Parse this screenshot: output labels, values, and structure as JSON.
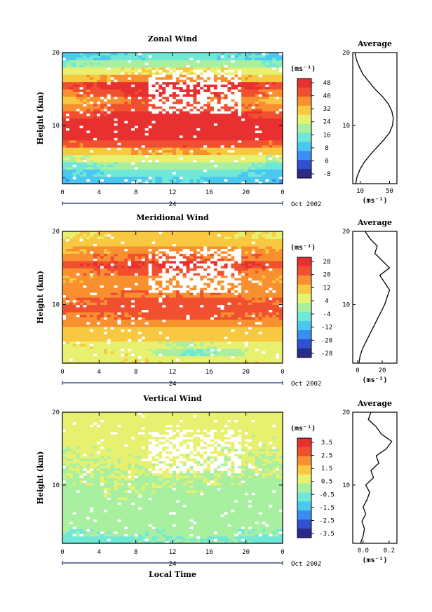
{
  "chart_data": [
    {
      "type": "heatmap",
      "title": "Zonal Wind",
      "ylabel": "Height (km)",
      "ylim": [
        2,
        20
      ],
      "y_ticks": [
        "10",
        "20"
      ],
      "xlim": [
        0,
        24
      ],
      "x_ticks": [
        "0",
        "4",
        "8",
        "12",
        "16",
        "20",
        "0"
      ],
      "date_marker": "24",
      "date_label": "Oct 2002",
      "colorbar": {
        "unit": "(ms⁻¹)",
        "levels": [
          "48",
          "40",
          "32",
          "24",
          "16",
          "8",
          "0",
          "-8"
        ],
        "range": [
          -12,
          52
        ]
      },
      "profile": {
        "title": "Average",
        "xlabel": "(ms⁻¹)",
        "x_ticks": [
          "10",
          "50"
        ],
        "xlim": [
          0,
          60
        ],
        "y_ticks": [
          "10",
          "20"
        ],
        "points": [
          [
            4,
            2
          ],
          [
            6,
            3
          ],
          [
            10,
            4
          ],
          [
            16,
            5
          ],
          [
            24,
            6
          ],
          [
            33,
            7
          ],
          [
            42,
            8
          ],
          [
            50,
            9
          ],
          [
            54,
            10
          ],
          [
            55,
            11
          ],
          [
            53,
            12
          ],
          [
            48,
            13
          ],
          [
            40,
            14
          ],
          [
            30,
            15
          ],
          [
            22,
            16
          ],
          [
            14,
            17
          ],
          [
            9,
            18
          ],
          [
            5,
            19
          ],
          [
            3,
            20
          ]
        ]
      },
      "time_rows": [
        [
          6,
          8,
          10,
          11,
          12,
          10,
          8,
          6
        ],
        [
          10,
          12,
          13,
          14,
          15,
          13,
          11,
          9
        ],
        [
          16,
          17,
          18,
          19,
          20,
          19,
          17,
          15
        ],
        [
          22,
          24,
          26,
          27,
          27,
          26,
          24,
          22
        ],
        [
          30,
          32,
          34,
          35,
          35,
          34,
          32,
          30
        ],
        [
          40,
          42,
          44,
          45,
          45,
          44,
          42,
          40
        ],
        [
          48,
          50,
          51,
          52,
          52,
          51,
          50,
          48
        ],
        [
          50,
          51,
          52,
          52,
          52,
          52,
          51,
          50
        ],
        [
          48,
          50,
          51,
          51,
          51,
          50,
          49,
          48
        ],
        [
          44,
          46,
          48,
          49,
          49,
          48,
          46,
          44
        ],
        [
          38,
          40,
          42,
          44,
          44,
          42,
          40,
          38
        ],
        [
          32,
          36,
          40,
          42,
          42,
          40,
          36,
          32
        ],
        [
          38,
          42,
          46,
          48,
          48,
          46,
          42,
          38
        ],
        [
          45,
          47,
          48,
          49,
          49,
          48,
          47,
          45
        ],
        [
          32,
          34,
          36,
          38,
          38,
          36,
          34,
          32
        ],
        [
          24,
          26,
          28,
          29,
          29,
          28,
          26,
          24
        ],
        [
          16,
          18,
          20,
          21,
          21,
          20,
          18,
          16
        ],
        [
          10,
          11,
          12,
          13,
          13,
          12,
          11,
          10
        ]
      ]
    },
    {
      "type": "heatmap",
      "title": "Meridional Wind",
      "ylabel": "Height (km)",
      "ylim": [
        2,
        20
      ],
      "y_ticks": [
        "10",
        "20"
      ],
      "xlim": [
        0,
        24
      ],
      "x_ticks": [
        "0",
        "4",
        "8",
        "12",
        "16",
        "20",
        "0"
      ],
      "date_marker": "24",
      "date_label": "Oct 2002",
      "colorbar": {
        "unit": "(ms⁻¹)",
        "levels": [
          "28",
          "20",
          "12",
          "4",
          "-4",
          "-12",
          "-20",
          "-28"
        ],
        "range": [
          -32,
          32
        ]
      },
      "profile": {
        "title": "Average",
        "xlabel": "(ms⁻¹)",
        "x_ticks": [
          "0",
          "20"
        ],
        "xlim": [
          -4,
          32
        ],
        "y_ticks": [
          "10",
          "20"
        ],
        "points": [
          [
            1,
            2
          ],
          [
            2,
            3
          ],
          [
            4,
            4
          ],
          [
            7,
            5
          ],
          [
            10,
            6
          ],
          [
            13,
            7
          ],
          [
            16,
            8
          ],
          [
            19,
            9
          ],
          [
            22,
            10
          ],
          [
            24,
            11
          ],
          [
            26,
            12
          ],
          [
            22,
            13
          ],
          [
            18,
            14
          ],
          [
            26,
            15
          ],
          [
            20,
            16
          ],
          [
            14,
            17
          ],
          [
            16,
            18
          ],
          [
            10,
            19
          ],
          [
            6,
            20
          ]
        ]
      },
      "time_rows": [
        [
          4,
          6,
          8,
          8,
          6,
          6,
          8,
          6
        ],
        [
          6,
          8,
          8,
          2,
          -4,
          -2,
          4,
          6
        ],
        [
          8,
          8,
          6,
          4,
          2,
          4,
          6,
          8
        ],
        [
          10,
          10,
          10,
          10,
          10,
          10,
          10,
          10
        ],
        [
          12,
          12,
          12,
          13,
          13,
          12,
          12,
          12
        ],
        [
          16,
          17,
          18,
          19,
          19,
          18,
          17,
          16
        ],
        [
          20,
          20,
          21,
          22,
          22,
          21,
          20,
          20
        ],
        [
          22,
          23,
          24,
          24,
          24,
          24,
          23,
          22
        ],
        [
          20,
          21,
          22,
          22,
          22,
          22,
          21,
          20
        ],
        [
          18,
          19,
          20,
          20,
          20,
          20,
          19,
          18
        ],
        [
          16,
          17,
          18,
          18,
          18,
          18,
          17,
          16
        ],
        [
          14,
          16,
          18,
          18,
          18,
          18,
          16,
          14
        ],
        [
          18,
          20,
          22,
          22,
          22,
          22,
          20,
          18
        ],
        [
          24,
          26,
          26,
          27,
          27,
          26,
          26,
          24
        ],
        [
          18,
          20,
          20,
          21,
          21,
          20,
          20,
          18
        ],
        [
          14,
          15,
          16,
          16,
          16,
          16,
          15,
          14
        ],
        [
          10,
          11,
          12,
          12,
          12,
          12,
          11,
          10
        ],
        [
          8,
          9,
          10,
          10,
          10,
          10,
          9,
          8
        ]
      ]
    },
    {
      "type": "heatmap",
      "title": "Vertical Wind",
      "ylabel": "Height (km)",
      "xlabel": "Local Time",
      "ylim": [
        2,
        20
      ],
      "y_ticks": [
        "10",
        "20"
      ],
      "xlim": [
        0,
        24
      ],
      "x_ticks": [
        "0",
        "4",
        "8",
        "12",
        "16",
        "20",
        "0"
      ],
      "date_marker": "24",
      "date_label": "Oct 2002",
      "colorbar": {
        "unit": "(ms⁻¹)",
        "levels": [
          "3.5",
          "2.5",
          "1.5",
          "0.5",
          "-0.5",
          "-1.5",
          "-2.5",
          "-3.5"
        ],
        "range": [
          -4,
          4
        ]
      },
      "profile": {
        "title": "Average",
        "xlabel": "(ms⁻¹)",
        "x_ticks": [
          "0.0",
          "0.2"
        ],
        "xlim": [
          -0.08,
          0.26
        ],
        "y_ticks": [
          "10",
          "20"
        ],
        "points": [
          [
            -0.02,
            2
          ],
          [
            0.0,
            3
          ],
          [
            0.01,
            4
          ],
          [
            -0.01,
            5
          ],
          [
            0.02,
            6
          ],
          [
            0.0,
            7
          ],
          [
            0.03,
            8
          ],
          [
            0.05,
            9
          ],
          [
            0.02,
            10
          ],
          [
            0.08,
            11
          ],
          [
            0.06,
            12
          ],
          [
            0.12,
            13
          ],
          [
            0.1,
            14
          ],
          [
            0.18,
            15
          ],
          [
            0.22,
            16
          ],
          [
            0.14,
            17
          ],
          [
            0.1,
            18
          ],
          [
            0.04,
            19
          ],
          [
            0.06,
            20
          ]
        ]
      },
      "time_rows": [
        [
          -0.8,
          -0.6,
          -0.5,
          -0.4,
          -0.3,
          -0.4,
          -0.5,
          -0.7
        ],
        [
          -0.4,
          -0.3,
          -0.2,
          -0.3,
          -0.2,
          -0.2,
          -0.3,
          -0.4
        ],
        [
          -0.2,
          -0.1,
          0.0,
          -0.1,
          0.0,
          -0.1,
          -0.1,
          -0.2
        ],
        [
          -0.1,
          0.0,
          0.1,
          0.0,
          0.1,
          0.0,
          0.0,
          -0.1
        ],
        [
          0.0,
          0.1,
          0.2,
          0.1,
          0.1,
          0.1,
          0.0,
          0.0
        ],
        [
          0.0,
          0.2,
          0.2,
          0.2,
          0.1,
          0.1,
          0.1,
          0.0
        ],
        [
          0.1,
          0.2,
          0.3,
          0.2,
          0.2,
          0.2,
          0.1,
          0.1
        ],
        [
          0.2,
          0.2,
          0.3,
          0.3,
          0.3,
          0.2,
          0.2,
          0.2
        ],
        [
          0.2,
          0.3,
          0.3,
          0.3,
          0.3,
          0.3,
          0.2,
          0.2
        ],
        [
          0.3,
          0.3,
          0.4,
          0.4,
          0.4,
          0.3,
          0.3,
          0.3
        ],
        [
          0.3,
          0.4,
          0.4,
          0.4,
          0.4,
          0.4,
          0.3,
          0.3
        ],
        [
          0.4,
          0.4,
          0.5,
          0.5,
          0.5,
          0.4,
          0.4,
          0.4
        ],
        [
          0.4,
          0.5,
          0.5,
          0.5,
          0.5,
          0.5,
          0.4,
          0.4
        ],
        [
          0.5,
          0.5,
          0.6,
          0.6,
          0.6,
          0.5,
          0.5,
          0.5
        ],
        [
          0.5,
          0.6,
          0.6,
          0.6,
          0.6,
          0.6,
          0.5,
          0.5
        ],
        [
          0.6,
          0.6,
          0.7,
          0.7,
          0.7,
          0.6,
          0.6,
          0.6
        ],
        [
          0.6,
          0.7,
          0.7,
          0.7,
          0.7,
          0.7,
          0.6,
          0.6
        ],
        [
          0.7,
          0.7,
          0.8,
          0.8,
          0.8,
          0.7,
          0.7,
          0.7
        ]
      ]
    }
  ],
  "colors": {
    "scale": [
      "#2a2a8a",
      "#3050d0",
      "#3a8ef0",
      "#4ac8f0",
      "#70e8d8",
      "#a8f0a0",
      "#e8f070",
      "#f8c840",
      "#f89030",
      "#f05030",
      "#e83030"
    ]
  }
}
